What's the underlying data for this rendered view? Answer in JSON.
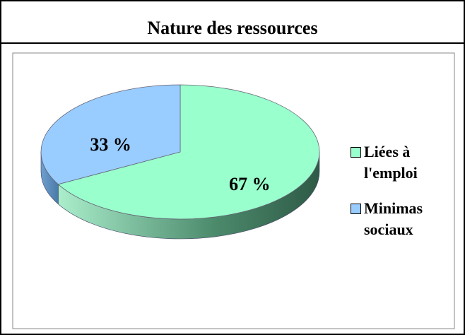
{
  "chart_data": {
    "type": "pie3d",
    "title": "Nature des ressources",
    "categories": [
      "Liées à l'emploi",
      "Minimas sociaux"
    ],
    "values": [
      67,
      33
    ],
    "value_labels": [
      "67 %",
      "33 %"
    ],
    "colors": [
      "#99ffcc",
      "#99ccff"
    ],
    "legend": "right"
  }
}
